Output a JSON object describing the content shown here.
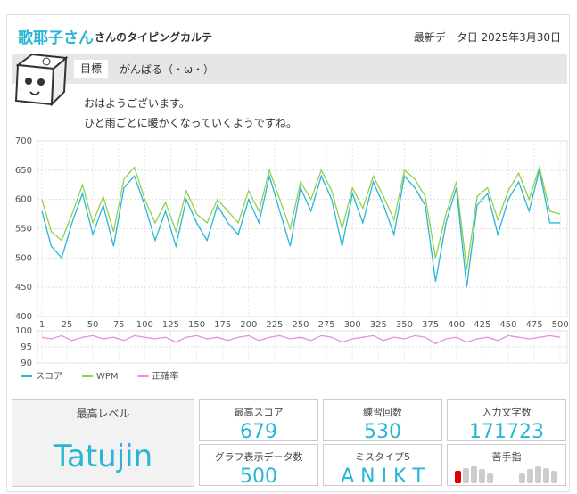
{
  "header": {
    "name": "歌耶子さん",
    "subtitle": "さんのタイピングカルテ",
    "date": "最新データ日 2025年3月30日"
  },
  "goal": {
    "label": "目標",
    "text": "がんばる（・ω・）"
  },
  "messages": [
    "おはようございます。",
    "ひと雨ごとに暖かくなっていくようですね。"
  ],
  "chart_data": [
    {
      "type": "line",
      "x": [
        1,
        10,
        20,
        30,
        40,
        50,
        60,
        70,
        80,
        90,
        100,
        110,
        120,
        130,
        140,
        150,
        160,
        170,
        180,
        190,
        200,
        210,
        220,
        230,
        240,
        250,
        260,
        270,
        280,
        290,
        300,
        310,
        320,
        330,
        340,
        350,
        360,
        370,
        380,
        390,
        400,
        410,
        420,
        430,
        440,
        450,
        460,
        470,
        480,
        490,
        500
      ],
      "xlim": [
        1,
        505
      ],
      "xticks": [
        1,
        25,
        50,
        75,
        100,
        125,
        150,
        175,
        200,
        225,
        250,
        275,
        300,
        325,
        350,
        375,
        400,
        425,
        450,
        475,
        500
      ],
      "ylim": [
        400,
        700
      ],
      "yticks": [
        400,
        450,
        500,
        550,
        600,
        650,
        700
      ],
      "grid": true,
      "series": [
        {
          "name": "スコア",
          "color": "#29b6d6",
          "values": [
            580,
            520,
            500,
            560,
            610,
            540,
            590,
            520,
            620,
            640,
            590,
            530,
            580,
            520,
            600,
            560,
            530,
            590,
            560,
            540,
            600,
            560,
            640,
            580,
            520,
            620,
            580,
            640,
            600,
            520,
            610,
            560,
            630,
            590,
            540,
            640,
            620,
            590,
            460,
            560,
            620,
            450,
            590,
            610,
            540,
            600,
            630,
            580,
            650,
            560,
            560
          ]
        },
        {
          "name": "WPM",
          "color": "#8fd14f",
          "values": [
            600,
            545,
            530,
            575,
            625,
            560,
            605,
            545,
            635,
            655,
            600,
            560,
            595,
            545,
            615,
            575,
            560,
            600,
            580,
            560,
            615,
            580,
            650,
            600,
            550,
            630,
            600,
            650,
            615,
            550,
            620,
            585,
            640,
            605,
            565,
            650,
            635,
            605,
            500,
            575,
            630,
            480,
            605,
            620,
            565,
            615,
            645,
            600,
            655,
            580,
            575
          ]
        }
      ]
    },
    {
      "type": "line",
      "x": [
        1,
        10,
        20,
        30,
        40,
        50,
        60,
        70,
        80,
        90,
        100,
        110,
        120,
        130,
        140,
        150,
        160,
        170,
        180,
        190,
        200,
        210,
        220,
        230,
        240,
        250,
        260,
        270,
        280,
        290,
        300,
        310,
        320,
        330,
        340,
        350,
        360,
        370,
        380,
        390,
        400,
        410,
        420,
        430,
        440,
        450,
        460,
        470,
        480,
        490,
        500
      ],
      "xlim": [
        1,
        505
      ],
      "ylim": [
        90,
        100
      ],
      "yticks": [
        90,
        95,
        100
      ],
      "grid": true,
      "series": [
        {
          "name": "正確率",
          "color": "#e88ee0",
          "values": [
            98,
            97.5,
            98.5,
            97,
            98,
            98.5,
            97.5,
            98,
            97,
            98.5,
            98,
            97.5,
            98,
            96.5,
            98,
            98.5,
            97.5,
            98,
            97,
            98,
            98.5,
            97,
            98,
            98.5,
            97.5,
            98,
            97,
            98.5,
            98,
            96.5,
            97.5,
            98,
            98.5,
            97,
            98,
            97.5,
            98.5,
            98,
            96,
            97.5,
            98,
            96.5,
            97.5,
            98,
            97,
            98.5,
            98,
            97.5,
            98,
            98.5,
            98
          ]
        }
      ]
    }
  ],
  "level": {
    "label": "最高レベル",
    "value": "Tatujin"
  },
  "stats": [
    {
      "label": "最高スコア",
      "value": 679
    },
    {
      "label": "練習回数",
      "value": 530
    },
    {
      "label": "入力文字数",
      "value": 171723
    },
    {
      "label": "グラフ表示データ数",
      "value": 500
    },
    {
      "label": "ミスタイプ5",
      "value": "A N I K T"
    },
    {
      "label": "苦手指"
    }
  ]
}
